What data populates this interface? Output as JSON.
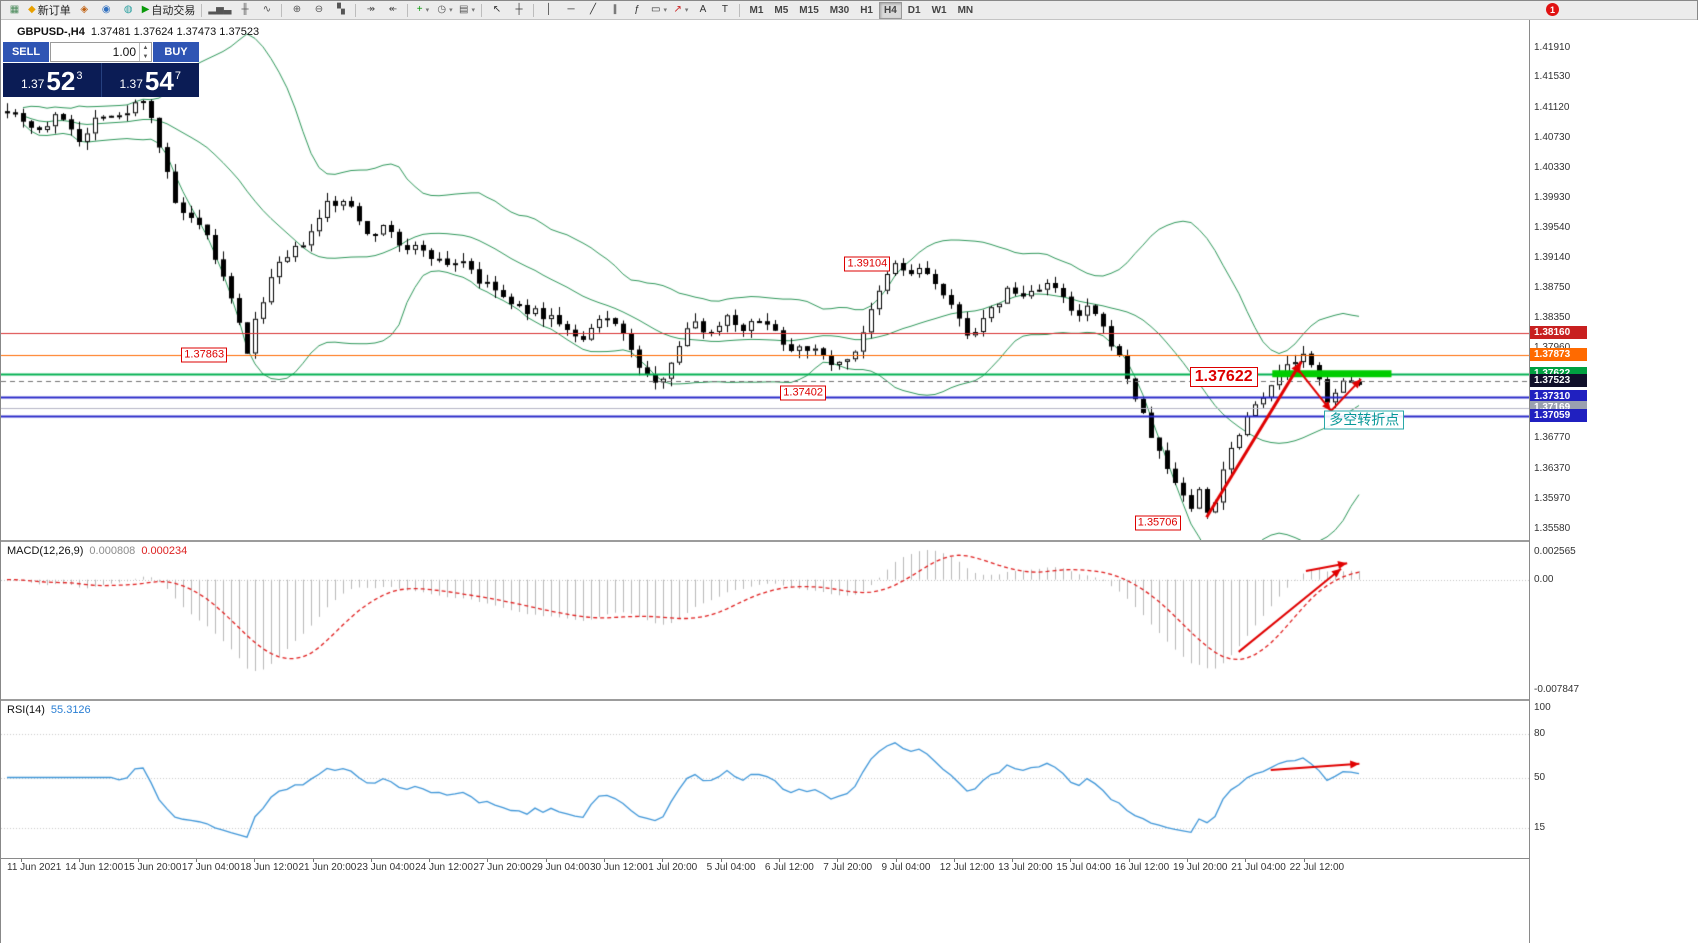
{
  "toolbar": {
    "items": [
      {
        "glyph": "▦",
        "color": "#4a8a5a",
        "name": "chart-window"
      },
      {
        "glyph": "◆",
        "color": "#e8a000",
        "label": "新订单",
        "name": "new-order"
      },
      {
        "glyph": "◈",
        "color": "#c06010",
        "name": "metaeditor"
      },
      {
        "glyph": "◉",
        "color": "#3070c0",
        "name": "market-watch"
      },
      {
        "glyph": "◍",
        "color": "#2aa0a0",
        "name": "data-window"
      },
      {
        "glyph": "▶",
        "color": "#0a9a0a",
        "label": "自动交易",
        "name": "autotrading"
      },
      {
        "t": "sep"
      },
      {
        "glyph": "▂▅▃",
        "color": "#555",
        "name": "bar-chart-mode"
      },
      {
        "glyph": "╫",
        "color": "#555",
        "name": "candlestick-mode"
      },
      {
        "glyph": "∿",
        "color": "#555",
        "name": "line-chart-mode"
      },
      {
        "t": "sep"
      },
      {
        "glyph": "⊕",
        "color": "#555",
        "name": "zoom-in"
      },
      {
        "glyph": "⊖",
        "color": "#555",
        "name": "zoom-out"
      },
      {
        "glyph": "▚",
        "color": "#555",
        "name": "tile-windows"
      },
      {
        "t": "sep"
      },
      {
        "glyph": "↠",
        "color": "#555",
        "name": "auto-scroll"
      },
      {
        "glyph": "↞",
        "color": "#555",
        "name": "chart-shift"
      },
      {
        "t": "sep"
      },
      {
        "glyph": "+",
        "color": "#0a9a0a",
        "name": "indicators",
        "dd": true
      },
      {
        "glyph": "◷",
        "color": "#555",
        "name": "periods",
        "dd": true
      },
      {
        "glyph": "▤",
        "color": "#555",
        "name": "templates",
        "dd": true
      },
      {
        "t": "sep"
      },
      {
        "glyph": "↖",
        "color": "#333",
        "name": "cursor"
      },
      {
        "glyph": "┼",
        "color": "#333",
        "name": "crosshair"
      },
      {
        "t": "sep"
      },
      {
        "glyph": "│",
        "color": "#333",
        "name": "vertical-line"
      },
      {
        "glyph": "─",
        "color": "#333",
        "name": "horizontal-line"
      },
      {
        "glyph": "╱",
        "color": "#333",
        "name": "trendline"
      },
      {
        "glyph": "∥",
        "color": "#333",
        "name": "equidistant-channel"
      },
      {
        "glyph": "ƒ",
        "color": "#333",
        "name": "fibonacci"
      },
      {
        "glyph": "▭",
        "color": "#333",
        "name": "shapes",
        "dd": true
      },
      {
        "glyph": "↗",
        "color": "#c22",
        "name": "arrows",
        "dd": true
      },
      {
        "glyph": "A",
        "color": "#333",
        "name": "text"
      },
      {
        "glyph": "T",
        "color": "#333",
        "name": "text-label"
      },
      {
        "t": "sep"
      }
    ],
    "timeframes": [
      "M1",
      "M5",
      "M15",
      "M30",
      "H1",
      "H4",
      "D1",
      "W1",
      "MN"
    ],
    "active_timeframe": "H4",
    "notification_count": "1"
  },
  "chart_header": {
    "symbol": "GBPUSD-,H4",
    "ohlc": "1.37481 1.37624 1.37473 1.37523"
  },
  "trade_panel": {
    "sell_label": "SELL",
    "buy_label": "BUY",
    "volume": "1.00",
    "stepper_up": "▲",
    "stepper_down": "▼",
    "sell_price_small": "1.37",
    "sell_price_big": "52",
    "sell_price_sup": "3",
    "buy_price_small": "1.37",
    "buy_price_big": "54",
    "buy_price_sup": "7"
  },
  "price_axis": {
    "labels": [
      "1.41910",
      "1.41530",
      "1.41120",
      "1.40730",
      "1.40330",
      "1.39930",
      "1.39540",
      "1.39140",
      "1.38750",
      "1.38350",
      "1.37960",
      "1.37560",
      "1.37170",
      "1.36770",
      "1.36370",
      "1.35970",
      "1.35580"
    ],
    "tags": [
      {
        "value": "1.38160",
        "bg": "#c82020"
      },
      {
        "value": "1.37873",
        "bg": "#ff6a00"
      },
      {
        "value": "1.37622",
        "bg": "#00a040"
      },
      {
        "value": "1.37523",
        "bg": "#10102a"
      },
      {
        "value": "1.37310",
        "bg": "#2020c0"
      },
      {
        "value": "1.37169",
        "bg": "#9aa0b0"
      },
      {
        "value": "1.37059",
        "bg": "#2020c0"
      }
    ]
  },
  "macd_panel": {
    "title": "MACD(12,26,9)",
    "values": [
      "0.000808",
      "0.000234"
    ],
    "axis_labels": [
      "0.002565",
      "0.00",
      "-0.007847"
    ]
  },
  "rsi_panel": {
    "title": "RSI(14)",
    "value": "55.3126",
    "axis_labels": [
      {
        "v": 100,
        "t": "100"
      },
      {
        "v": 80,
        "t": "80"
      },
      {
        "v": 50,
        "t": "50"
      },
      {
        "v": 15,
        "t": "15"
      }
    ],
    "levels": [
      80,
      50,
      15
    ]
  },
  "time_axis": {
    "labels": [
      "11 Jun 2021",
      "14 Jun 12:00",
      "15 Jun 20:00",
      "17 Jun 04:00",
      "18 Jun 12:00",
      "21 Jun 20:00",
      "23 Jun 04:00",
      "24 Jun 12:00",
      "27 Jun 20:00",
      "29 Jun 04:00",
      "30 Jun 12:00",
      "1 Jul 20:00",
      "5 Jul 04:00",
      "6 Jul 12:00",
      "7 Jul 20:00",
      "9 Jul 04:00",
      "12 Jul 12:00",
      "13 Jul 20:00",
      "15 Jul 04:00",
      "16 Jul 12:00",
      "19 Jul 20:00",
      "21 Jul 04:00",
      "22 Jul 12:00"
    ]
  },
  "annotations": {
    "price_flags": [
      {
        "text": "1.39104",
        "x": 0.552,
        "price": 1.3907
      },
      {
        "text": "1.37863",
        "x": 0.118,
        "price": 1.3787
      },
      {
        "text": "1.37402",
        "x": 0.51,
        "price": 1.3737
      },
      {
        "text": "1.35706",
        "x": 0.742,
        "price": 1.3566
      }
    ],
    "big_flag": {
      "text": "1.37622",
      "x": 0.778,
      "price": 1.3758
    },
    "cn_label": {
      "text": "多空转折点",
      "x": 0.866,
      "price": 1.3701
    }
  },
  "chart_data": {
    "type": "candlestick+indicators",
    "symbol": "GBPUSD",
    "timeframe": "H4",
    "bars": 170,
    "price_min": 1.3543,
    "price_max": 1.4228,
    "price_path": [
      [
        0.0,
        1.4112
      ],
      [
        0.01,
        1.41
      ],
      [
        0.023,
        1.4082
      ],
      [
        0.04,
        1.4104
      ],
      [
        0.056,
        1.4066
      ],
      [
        0.068,
        1.4108
      ],
      [
        0.085,
        1.4098
      ],
      [
        0.1,
        1.4128
      ],
      [
        0.108,
        1.4095
      ],
      [
        0.113,
        1.4058
      ],
      [
        0.124,
        1.3986
      ],
      [
        0.136,
        1.3962
      ],
      [
        0.147,
        1.3945
      ],
      [
        0.158,
        1.3896
      ],
      [
        0.17,
        1.3836
      ],
      [
        0.178,
        1.3789
      ],
      [
        0.186,
        1.3848
      ],
      [
        0.198,
        1.3898
      ],
      [
        0.215,
        1.3928
      ],
      [
        0.226,
        1.3948
      ],
      [
        0.237,
        1.3988
      ],
      [
        0.254,
        1.3984
      ],
      [
        0.266,
        1.395
      ],
      [
        0.283,
        1.3953
      ],
      [
        0.294,
        1.3921
      ],
      [
        0.305,
        1.3931
      ],
      [
        0.322,
        1.3906
      ],
      [
        0.339,
        1.3912
      ],
      [
        0.35,
        1.3881
      ],
      [
        0.362,
        1.3872
      ],
      [
        0.373,
        1.3851
      ],
      [
        0.39,
        1.3843
      ],
      [
        0.407,
        1.3833
      ],
      [
        0.424,
        1.3801
      ],
      [
        0.44,
        1.3836
      ],
      [
        0.452,
        1.3831
      ],
      [
        0.463,
        1.3783
      ],
      [
        0.48,
        1.3744
      ],
      [
        0.497,
        1.3801
      ],
      [
        0.508,
        1.3833
      ],
      [
        0.52,
        1.3813
      ],
      [
        0.531,
        1.3841
      ],
      [
        0.542,
        1.3823
      ],
      [
        0.565,
        1.3833
      ],
      [
        0.576,
        1.3793
      ],
      [
        0.588,
        1.3803
      ],
      [
        0.6,
        1.3787
      ],
      [
        0.616,
        1.3773
      ],
      [
        0.627,
        1.3793
      ],
      [
        0.644,
        1.3863
      ],
      [
        0.655,
        1.3908
      ],
      [
        0.667,
        1.3893
      ],
      [
        0.678,
        1.3901
      ],
      [
        0.689,
        1.3873
      ],
      [
        0.7,
        1.3843
      ],
      [
        0.712,
        1.3813
      ],
      [
        0.723,
        1.3833
      ],
      [
        0.74,
        1.3873
      ],
      [
        0.751,
        1.3863
      ],
      [
        0.768,
        1.3883
      ],
      [
        0.78,
        1.3863
      ],
      [
        0.791,
        1.3833
      ],
      [
        0.802,
        1.3853
      ],
      [
        0.808,
        1.3823
      ],
      [
        0.814,
        1.3813
      ],
      [
        0.825,
        1.3773
      ],
      [
        0.836,
        1.3723
      ],
      [
        0.848,
        1.3673
      ],
      [
        0.859,
        1.3633
      ],
      [
        0.87,
        1.3603
      ],
      [
        0.876,
        1.3583
      ],
      [
        0.881,
        1.3612
      ],
      [
        0.886,
        1.3586
      ],
      [
        0.89,
        1.3572
      ],
      [
        0.9,
        1.3642
      ],
      [
        0.915,
        1.3702
      ],
      [
        0.927,
        1.3732
      ],
      [
        0.938,
        1.3756
      ],
      [
        0.949,
        1.3776
      ],
      [
        0.96,
        1.3786
      ],
      [
        0.966,
        1.3766
      ],
      [
        0.972,
        1.3746
      ],
      [
        0.977,
        1.3727
      ],
      [
        0.983,
        1.3742
      ],
      [
        0.989,
        1.3749
      ],
      [
        1.0,
        1.3753
      ]
    ],
    "levels": [
      {
        "price": 1.3816,
        "color": "#d83030",
        "width": 1
      },
      {
        "price": 1.37873,
        "color": "#ff6a00",
        "width": 1
      },
      {
        "price": 1.37622,
        "color": "#00b050",
        "width": 2
      },
      {
        "price": 1.37169,
        "color": "#b4b4c4",
        "width": 1
      },
      {
        "price": 1.3731,
        "color": "#2828c8",
        "width": 2
      },
      {
        "price": 1.37059,
        "color": "#2828c8",
        "width": 2
      }
    ],
    "current_price": {
      "price": 1.37523,
      "color": "#707070"
    },
    "bollinger": {
      "period": 20,
      "deviation": 2,
      "color": "#2c9658"
    },
    "macd": {
      "fast": 12,
      "slow": 26,
      "signal": 9,
      "hist_color": "#b8b8b8",
      "signal_color": "#e02020",
      "zero_frac": 0.24
    },
    "rsi": {
      "period": 14,
      "color": "#3f96d8"
    },
    "green_bar": {
      "price": 1.3762,
      "x1_frac": 0.832,
      "x2_frac": 0.91,
      "color": "#00cc00",
      "thickness": 7
    },
    "arrow_color": "#e00000",
    "arrows_main": [
      {
        "x1": 0.789,
        "p1": 1.3573,
        "x2": 0.851,
        "p2": 1.3778,
        "w": 3
      },
      {
        "x1": 0.8495,
        "p1": 1.3766,
        "x2": 0.8704,
        "p2": 1.3713,
        "w": 2
      },
      {
        "x1": 0.8704,
        "p1": 1.3713,
        "x2": 0.8901,
        "p2": 1.3755,
        "w": 2
      }
    ],
    "arrows_macd": [
      {
        "x1": 0.81,
        "y1": 0.7,
        "x2": 0.877,
        "y2": 0.17,
        "w": 2
      },
      {
        "x1": 0.854,
        "y1": 0.185,
        "x2": 0.881,
        "y2": 0.135,
        "w": 2
      }
    ],
    "arrows_rsi": [
      {
        "x1": 0.831,
        "y1": 0.44,
        "x2": 0.889,
        "y2": 0.4,
        "w": 2
      }
    ]
  }
}
